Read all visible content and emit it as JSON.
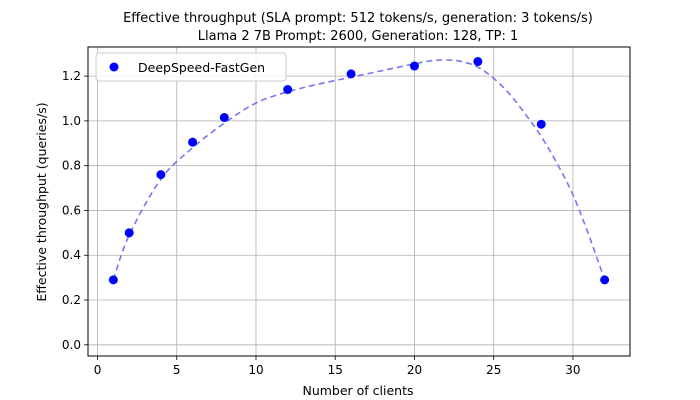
{
  "chart_data": {
    "type": "scatter",
    "title": "Effective throughput (SLA prompt: 512 tokens/s, generation: 3 tokens/s)",
    "subtitle": "Llama 2 7B Prompt: 2600, Generation: 128, TP: 1",
    "xlabel": "Number of clients",
    "ylabel": "Effective throughput (queries/s)",
    "xlim": [
      -0.6,
      33.6
    ],
    "ylim": [
      -0.05,
      1.33
    ],
    "xticks": [
      0,
      5,
      10,
      15,
      20,
      25,
      30
    ],
    "yticks": [
      0.0,
      0.2,
      0.4,
      0.6,
      0.8,
      1.0,
      1.2
    ],
    "xtick_labels": [
      "0",
      "5",
      "10",
      "15",
      "20",
      "25",
      "30"
    ],
    "ytick_labels": [
      "0.0",
      "0.2",
      "0.4",
      "0.6",
      "0.8",
      "1.0",
      "1.2"
    ],
    "grid": true,
    "legend_position": "upper-left",
    "series": [
      {
        "name": "DeepSpeed-FastGen",
        "marker_color": "#0000ff",
        "x": [
          1,
          2,
          4,
          6,
          8,
          12,
          16,
          20,
          24,
          28,
          32
        ],
        "y": [
          0.29,
          0.5,
          0.76,
          0.905,
          1.015,
          1.14,
          1.21,
          1.245,
          1.265,
          0.985,
          0.29
        ]
      }
    ],
    "fit_line": {
      "style": "dashed",
      "color": "#7777ee",
      "x": [
        1,
        2,
        4,
        6,
        8,
        10,
        12,
        14,
        16,
        18,
        20,
        21,
        22,
        23,
        24,
        25,
        26,
        27,
        28,
        29,
        30,
        31,
        32
      ],
      "y": [
        0.29,
        0.49,
        0.74,
        0.88,
        0.99,
        1.08,
        1.13,
        1.165,
        1.195,
        1.225,
        1.255,
        1.268,
        1.272,
        1.265,
        1.24,
        1.19,
        1.12,
        1.03,
        0.93,
        0.81,
        0.67,
        0.49,
        0.29
      ]
    }
  }
}
